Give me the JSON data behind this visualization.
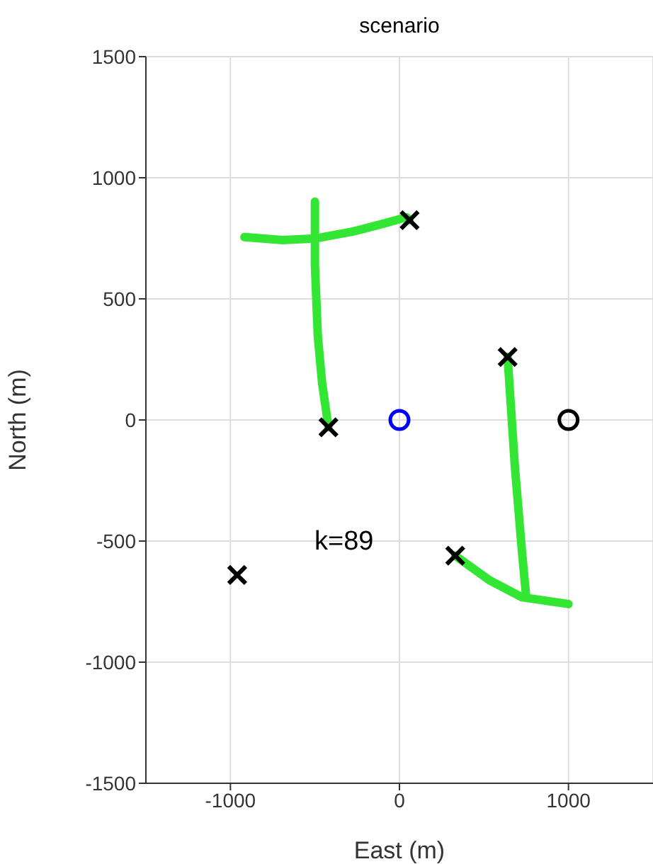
{
  "chart_data": {
    "type": "line",
    "title": "scenario",
    "xlabel": "East (m)",
    "ylabel": "North (m)",
    "xlim": [
      -1500,
      1500
    ],
    "xticks": [
      -1000,
      0,
      1000
    ],
    "ylim": [
      -1500,
      1500
    ],
    "yticks": [
      -1500,
      -1000,
      -500,
      0,
      500,
      1000,
      1500
    ],
    "grid": true,
    "annotations": [
      "k=89"
    ],
    "series": [
      {
        "type": "line",
        "color": "#33e633",
        "marker": "none",
        "x": [
          -917,
          -692,
          -500,
          -275,
          -108,
          42,
          60
        ],
        "values": [
          755,
          743,
          749,
          778,
          808,
          837,
          825
        ]
      },
      {
        "type": "line",
        "color": "#33e633",
        "marker": "none",
        "x": [
          -500,
          -500,
          -483,
          -458,
          -420
        ],
        "values": [
          901,
          639,
          347,
          155,
          -30
        ]
      },
      {
        "type": "line",
        "color": "#33e633",
        "marker": "none",
        "x": [
          640,
          683,
          725,
          750
        ],
        "values": [
          260,
          -195,
          -545,
          -732
        ]
      },
      {
        "type": "line",
        "color": "#33e633",
        "marker": "none",
        "x": [
          330,
          533,
          725,
          1000
        ],
        "values": [
          -560,
          -662,
          -732,
          -760
        ]
      },
      {
        "type": "scatter",
        "color": "#000000",
        "marker": "cross",
        "x": [
          -960,
          -420,
          60,
          640,
          330
        ],
        "values": [
          -640,
          -30,
          825,
          260,
          -560
        ]
      },
      {
        "type": "scatter",
        "color": "#0000ff",
        "marker": "circle",
        "x": [
          0
        ],
        "values": [
          0
        ]
      },
      {
        "type": "scatter",
        "color": "#000000",
        "marker": "circle",
        "x": [
          1000
        ],
        "values": [
          0
        ]
      }
    ]
  }
}
